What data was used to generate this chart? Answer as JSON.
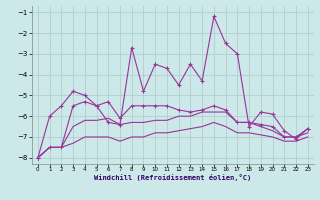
{
  "xlabel": "Windchill (Refroidissement éolien,°C)",
  "background_color": "#cce8e8",
  "grid_color": "#aacccc",
  "line_color": "#993399",
  "xlim": [
    -0.5,
    23.5
  ],
  "ylim": [
    -8.3,
    -0.7
  ],
  "yticks": [
    -8,
    -7,
    -6,
    -5,
    -4,
    -3,
    -2,
    -1
  ],
  "xticks": [
    0,
    1,
    2,
    3,
    4,
    5,
    6,
    7,
    8,
    9,
    10,
    11,
    12,
    13,
    14,
    15,
    16,
    17,
    18,
    19,
    20,
    21,
    22,
    23
  ],
  "line1_x": [
    0,
    1,
    2,
    3,
    4,
    5,
    6,
    7,
    8,
    9,
    10,
    11,
    12,
    13,
    14,
    15,
    16,
    17,
    18,
    19,
    20,
    21,
    22,
    23
  ],
  "line1_y": [
    -8.0,
    -6.0,
    -5.5,
    -4.8,
    -5.0,
    -5.5,
    -6.3,
    -6.4,
    -2.7,
    -4.8,
    -3.5,
    -3.7,
    -4.5,
    -3.5,
    -4.3,
    -1.2,
    -2.5,
    -3.0,
    -6.5,
    -5.8,
    -5.9,
    -6.7,
    -7.1,
    -6.6
  ],
  "line2_x": [
    0,
    1,
    2,
    3,
    4,
    5,
    6,
    7,
    8,
    9,
    10,
    11,
    12,
    13,
    14,
    15,
    16,
    17,
    18,
    19,
    20,
    21,
    22,
    23
  ],
  "line2_y": [
    -8.0,
    -7.5,
    -7.5,
    -5.5,
    -5.3,
    -5.5,
    -5.3,
    -6.1,
    -5.5,
    -5.5,
    -5.5,
    -5.5,
    -5.7,
    -5.8,
    -5.7,
    -5.5,
    -5.7,
    -6.3,
    -6.3,
    -6.4,
    -6.5,
    -7.0,
    -7.0,
    -6.6
  ],
  "line3_x": [
    0,
    1,
    2,
    3,
    4,
    5,
    6,
    7,
    8,
    9,
    10,
    11,
    12,
    13,
    14,
    15,
    16,
    17,
    18,
    19,
    20,
    21,
    22,
    23
  ],
  "line3_y": [
    -8.0,
    -7.5,
    -7.5,
    -6.5,
    -6.2,
    -6.2,
    -6.1,
    -6.4,
    -6.3,
    -6.3,
    -6.2,
    -6.2,
    -6.0,
    -6.0,
    -5.8,
    -5.8,
    -5.8,
    -6.3,
    -6.3,
    -6.5,
    -6.7,
    -7.0,
    -7.0,
    -6.8
  ],
  "line4_x": [
    0,
    1,
    2,
    3,
    4,
    5,
    6,
    7,
    8,
    9,
    10,
    11,
    12,
    13,
    14,
    15,
    16,
    17,
    18,
    19,
    20,
    21,
    22,
    23
  ],
  "line4_y": [
    -8.0,
    -7.5,
    -7.5,
    -7.3,
    -7.0,
    -7.0,
    -7.0,
    -7.2,
    -7.0,
    -7.0,
    -6.8,
    -6.8,
    -6.7,
    -6.6,
    -6.5,
    -6.3,
    -6.5,
    -6.8,
    -6.8,
    -6.9,
    -7.0,
    -7.2,
    -7.2,
    -7.0
  ]
}
